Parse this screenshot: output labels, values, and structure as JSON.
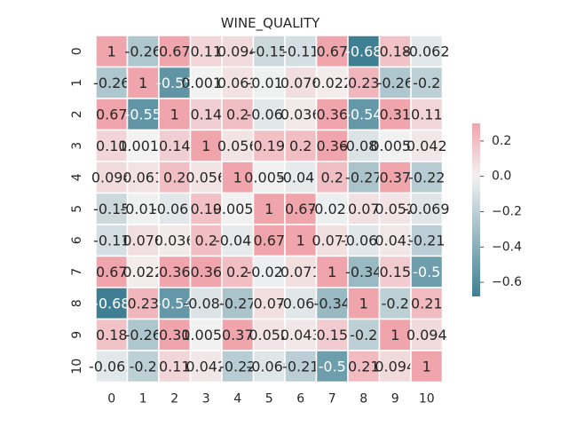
{
  "chart_data": {
    "type": "heatmap",
    "title": "WINE_QUALITY",
    "x_labels": [
      "0",
      "1",
      "2",
      "3",
      "4",
      "5",
      "6",
      "7",
      "8",
      "9",
      "10"
    ],
    "y_labels": [
      "0",
      "1",
      "2",
      "3",
      "4",
      "5",
      "6",
      "7",
      "8",
      "9",
      "10"
    ],
    "values": [
      [
        1,
        -0.26,
        0.67,
        0.11,
        0.094,
        -0.15,
        -0.11,
        0.67,
        -0.68,
        0.18,
        -0.062
      ],
      [
        -0.26,
        1,
        -0.55,
        0.0019,
        0.061,
        -0.011,
        0.076,
        0.022,
        0.23,
        -0.26,
        -0.2
      ],
      [
        0.67,
        -0.55,
        1,
        0.14,
        0.2,
        -0.061,
        0.036,
        0.36,
        -0.54,
        0.31,
        0.11
      ],
      [
        0.11,
        0.0019,
        0.14,
        1,
        0.056,
        0.19,
        0.2,
        0.36,
        -0.086,
        0.0055,
        0.042
      ],
      [
        0.094,
        0.061,
        0.2,
        0.056,
        1,
        0.0056,
        -0.047,
        0.2,
        -0.27,
        0.37,
        -0.22
      ],
      [
        -0.15,
        -0.011,
        -0.061,
        0.19,
        0.0056,
        1,
        0.67,
        -0.022,
        0.07,
        0.052,
        -0.069
      ],
      [
        -0.11,
        0.076,
        0.036,
        0.2,
        -0.047,
        0.67,
        1,
        0.071,
        -0.066,
        0.043,
        -0.21
      ],
      [
        0.67,
        0.022,
        0.36,
        0.36,
        0.2,
        -0.022,
        0.071,
        1,
        -0.34,
        0.15,
        -0.5
      ],
      [
        -0.68,
        0.23,
        -0.54,
        -0.086,
        -0.27,
        0.07,
        -0.066,
        -0.34,
        1,
        -0.2,
        0.21
      ],
      [
        0.18,
        -0.26,
        0.31,
        0.0055,
        0.37,
        0.052,
        0.043,
        0.15,
        -0.2,
        1,
        0.094
      ],
      [
        -0.062,
        -0.2,
        0.11,
        0.042,
        -0.22,
        -0.069,
        -0.21,
        -0.5,
        0.21,
        0.094,
        1
      ]
    ],
    "value_labels": [
      [
        "1",
        "-0.26",
        "0.67",
        "0.11",
        "0.094",
        "-0.15",
        "-0.11",
        "0.67",
        "-0.68",
        "0.18",
        "-0.062"
      ],
      [
        "-0.26",
        "1",
        "-0.55",
        "0.0019",
        "0.061",
        "-0.011",
        "0.076",
        "0.022",
        "0.23",
        "-0.26",
        "-0.2"
      ],
      [
        "0.67",
        "-0.55",
        "1",
        "0.14",
        "0.2",
        "-0.061",
        "0.036",
        "0.36",
        "-0.54",
        "0.31",
        "0.11"
      ],
      [
        "0.11",
        "0.0019",
        "0.14",
        "1",
        "0.056",
        "0.19",
        "0.2",
        "0.36",
        "-0.086",
        "0.0055",
        "0.042"
      ],
      [
        "0.094",
        "0.061",
        "0.2",
        "0.056",
        "1",
        "0.0056",
        "-0.047",
        "0.2",
        "-0.27",
        "0.37",
        "-0.22"
      ],
      [
        "-0.15",
        "-0.011",
        "-0.061",
        "0.19",
        "0.0056",
        "1",
        "0.67",
        "-0.022",
        "0.07",
        "0.052",
        "-0.069"
      ],
      [
        "-0.11",
        "0.076",
        "0.036",
        "0.2",
        "-0.047",
        "0.67",
        "1",
        "0.071",
        "-0.066",
        "0.043",
        "-0.21"
      ],
      [
        "0.67",
        "0.022",
        "0.36",
        "0.36",
        "0.2",
        "-0.022",
        "0.071",
        "1",
        "-0.34",
        "0.15",
        "-0.5"
      ],
      [
        "-0.68",
        "0.23",
        "-0.54",
        "-0.086",
        "-0.27",
        "0.07",
        "-0.066",
        "-0.34",
        "1",
        "-0.2",
        "0.21"
      ],
      [
        "0.18",
        "-0.26",
        "0.31",
        "0.0055",
        "0.37",
        "0.052",
        "0.043",
        "0.15",
        "-0.2",
        "1",
        "0.094"
      ],
      [
        "-0.062",
        "-0.2",
        "0.11",
        "0.042",
        "-0.22",
        "-0.069",
        "-0.21",
        "-0.5",
        "0.21",
        "0.094",
        "1"
      ]
    ],
    "color_range": [
      -0.68,
      0.3
    ],
    "colors": {
      "negative": "#3f7f93",
      "middle": "#f2f2f2",
      "positive": "#f0a4ab",
      "gridline": "#ffffff",
      "text_dark": "#262626",
      "text_light": "#ffffff"
    },
    "colorbar": {
      "ticks": [
        "0.2",
        "0.0",
        "−0.2",
        "−0.4",
        "−0.6"
      ],
      "tick_values": [
        0.2,
        0.0,
        -0.2,
        -0.4,
        -0.6
      ]
    }
  }
}
